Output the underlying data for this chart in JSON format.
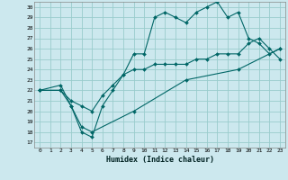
{
  "xlabel": "Humidex (Indice chaleur)",
  "bg_color": "#cce8ee",
  "grid_color": "#99cccc",
  "line_color": "#006666",
  "xlim": [
    -0.5,
    23.5
  ],
  "ylim": [
    16.5,
    30.5
  ],
  "yticks": [
    17,
    18,
    19,
    20,
    21,
    22,
    23,
    24,
    25,
    26,
    27,
    28,
    29,
    30
  ],
  "xticks": [
    0,
    1,
    2,
    3,
    4,
    5,
    6,
    7,
    8,
    9,
    10,
    11,
    12,
    13,
    14,
    15,
    16,
    17,
    18,
    19,
    20,
    21,
    22,
    23
  ],
  "line1_x": [
    0,
    2,
    3,
    4,
    5,
    6,
    7,
    8,
    9,
    10,
    11,
    12,
    13,
    14,
    15,
    16,
    17,
    18,
    19,
    20,
    21,
    22,
    23
  ],
  "line1_y": [
    22,
    22.5,
    20.5,
    18,
    17.5,
    20.5,
    22,
    23.5,
    25.5,
    25.5,
    29,
    29.5,
    29,
    28.5,
    29.5,
    30,
    30.5,
    29,
    29.5,
    27,
    26.5,
    25.5,
    26
  ],
  "line2_x": [
    0,
    2,
    3,
    4,
    5,
    6,
    7,
    8,
    9,
    10,
    11,
    12,
    13,
    14,
    15,
    16,
    17,
    18,
    19,
    20,
    21,
    22,
    23
  ],
  "line2_y": [
    22,
    22,
    21,
    20.5,
    20,
    21.5,
    22.5,
    23.5,
    24,
    24,
    24.5,
    24.5,
    24.5,
    24.5,
    25,
    25,
    25.5,
    25.5,
    25.5,
    26.5,
    27,
    26,
    25
  ],
  "line3_x": [
    0,
    2,
    3,
    4,
    5,
    9,
    14,
    19,
    23
  ],
  "line3_y": [
    22,
    22,
    20.5,
    18.5,
    18,
    20,
    23,
    24,
    26
  ]
}
